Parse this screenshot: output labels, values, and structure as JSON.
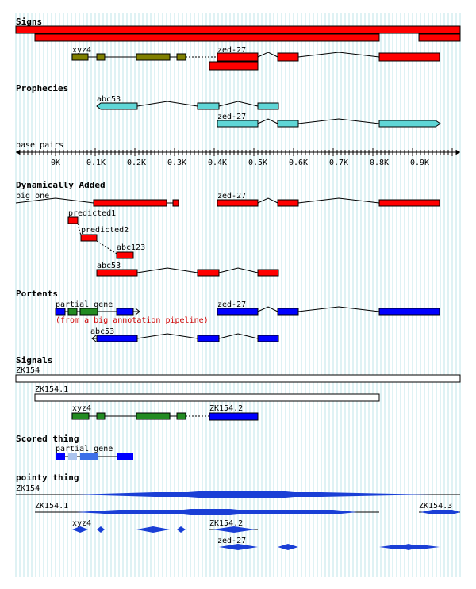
{
  "axis": {
    "label": "base pairs",
    "ticks": [
      "0K",
      "0.1K",
      "0.2K",
      "0.3K",
      "0.4K",
      "0.5K",
      "0.6K",
      "0.7K",
      "0.8K",
      "0.9K"
    ]
  },
  "colors": {
    "grid": "#bfe6ea",
    "red": "#ff0000",
    "olive": "#808000",
    "cyan": "#5fd6d6",
    "blue": "#0000ff",
    "green": "#228b22",
    "light_blue": "#aac4ee",
    "mid_blue": "#3b6fe8",
    "pointy": "#1a3fd6",
    "note": "#cc0000"
  },
  "sections": {
    "signs": "Signs",
    "prophecies": "Prophecies",
    "dynamically_added": "Dynamically Added",
    "portents": "Portents",
    "signals": "Signals",
    "scored_thing": "Scored thing",
    "pointy_thing": "pointy thing"
  },
  "labels": {
    "signs_xyz4": "xyz4",
    "signs_zed27": "zed-27",
    "prophecies_abc53": "abc53",
    "prophecies_zed27": "zed-27",
    "dyn_big_one": "big one",
    "dyn_zed27": "zed-27",
    "dyn_predicted1": "predicted1",
    "dyn_predicted2": "predicted2",
    "dyn_abc123": "abc123",
    "dyn_abc53": "abc53",
    "portents_partial_gene": "partial gene",
    "portents_zed27": "zed-27",
    "portents_note": "(from a big annotation pipeline)",
    "portents_abc53": "abc53",
    "signals_zk154": "ZK154",
    "signals_zk154_1": "ZK154.1",
    "signals_xyz4": "xyz4",
    "signals_zk154_2": "ZK154.2",
    "scored_partial_gene": "partial gene",
    "pointy_zk154": "ZK154",
    "pointy_zk154_1": "ZK154.1",
    "pointy_zk154_3": "ZK154.3",
    "pointy_xyz4": "xyz4",
    "pointy_zk154_2": "ZK154.2",
    "pointy_zed27": "zed-27"
  }
}
